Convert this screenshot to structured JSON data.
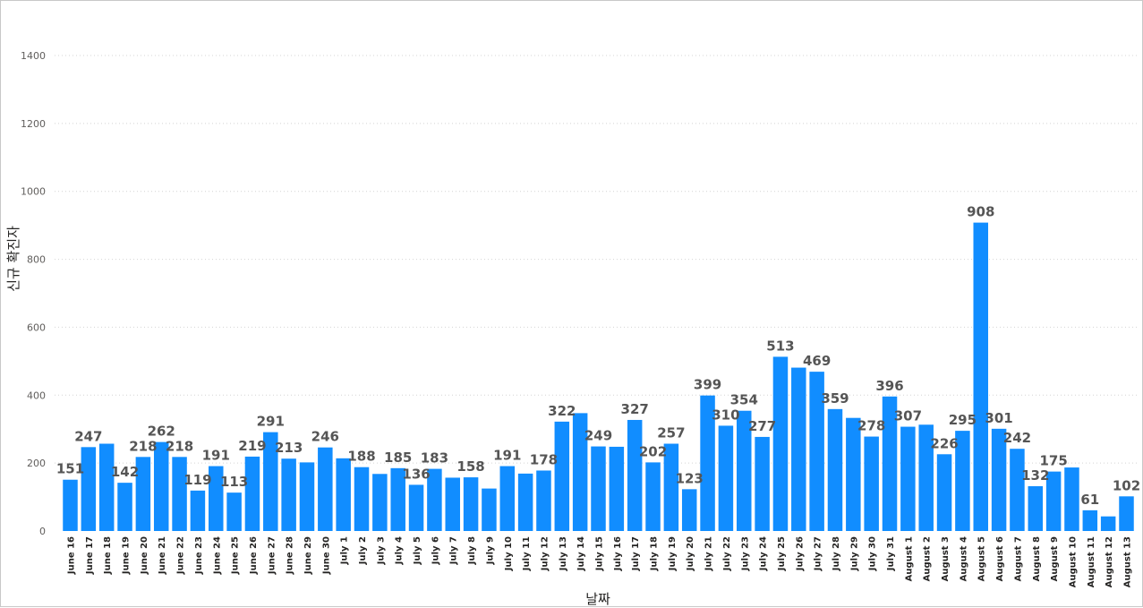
{
  "chart_data": {
    "type": "bar",
    "xlabel": "날짜",
    "ylabel": "신규 확진자",
    "ylim": [
      0,
      1400
    ],
    "yticks": [
      0,
      200,
      400,
      600,
      800,
      1000,
      1200,
      1400
    ],
    "grid": true,
    "bar_color": "#118dff",
    "categories": [
      "June 16",
      "June 17",
      "June 18",
      "June 19",
      "June 20",
      "June 21",
      "June 22",
      "June 23",
      "June 24",
      "June 25",
      "June 26",
      "June 27",
      "June 28",
      "June 29",
      "June 30",
      "July 1",
      "July 2",
      "July 3",
      "July 4",
      "July 5",
      "July 6",
      "July 7",
      "July 8",
      "July 9",
      "July 10",
      "July 11",
      "July 12",
      "July 13",
      "July 14",
      "July 15",
      "July 16",
      "July 17",
      "July 18",
      "July 19",
      "July 20",
      "July 21",
      "July 22",
      "July 23",
      "July 24",
      "July 25",
      "July 26",
      "July 27",
      "July 28",
      "July 29",
      "July 30",
      "July 31",
      "August 1",
      "August 2",
      "August 3",
      "August 4",
      "August 5",
      "August 6",
      "August 7",
      "August 8",
      "August 9",
      "August 10",
      "August 11",
      "August 12",
      "August 13"
    ],
    "values": [
      151,
      247,
      257,
      142,
      218,
      262,
      218,
      119,
      191,
      113,
      219,
      291,
      213,
      202,
      246,
      214,
      188,
      168,
      185,
      136,
      183,
      157,
      158,
      125,
      191,
      169,
      178,
      322,
      347,
      249,
      248,
      327,
      202,
      257,
      123,
      399,
      310,
      354,
      277,
      513,
      481,
      469,
      359,
      333,
      278,
      396,
      307,
      313,
      226,
      295,
      908,
      301,
      242,
      132,
      175,
      187,
      61,
      43,
      102
    ],
    "labeled": [
      true,
      true,
      false,
      true,
      true,
      true,
      true,
      true,
      true,
      true,
      true,
      true,
      true,
      false,
      true,
      false,
      true,
      false,
      true,
      true,
      true,
      false,
      true,
      false,
      true,
      false,
      true,
      true,
      false,
      true,
      false,
      true,
      true,
      true,
      true,
      true,
      true,
      true,
      true,
      true,
      false,
      true,
      true,
      false,
      true,
      true,
      true,
      false,
      true,
      true,
      true,
      true,
      true,
      true,
      true,
      false,
      true,
      false,
      true
    ]
  }
}
